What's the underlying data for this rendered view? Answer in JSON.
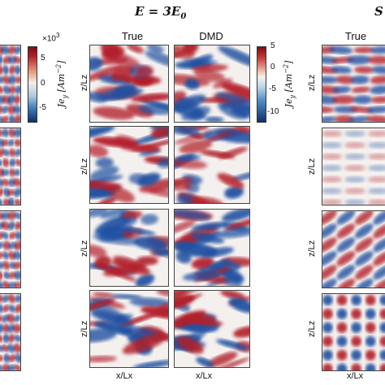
{
  "figure": {
    "title_main": "E = 3E",
    "title_sub": "0",
    "right_title": "S",
    "col_headers": {
      "mid_true": "True",
      "mid_dmd": "DMD",
      "right_true": "True"
    },
    "xlabel": "x/Lx",
    "zlabel": "z/Lz",
    "colorbar_left": {
      "exponent": "×10",
      "exponent_sup": "3",
      "ticks": [
        "5",
        "0",
        "-5"
      ],
      "label": "Je",
      "label_sub": "y",
      "units": "[Am",
      "units_sup": "−2",
      "units_end": "]"
    },
    "colorbar_right": {
      "ticks": [
        "5",
        "0",
        "-5",
        "-10"
      ],
      "label": "Je",
      "label_sub": "y",
      "units": "[Am",
      "units_sup": "−2",
      "units_end": "]"
    },
    "palette": {
      "neg": "#1f4fa0",
      "pos": "#b21f2a",
      "zero": "#f4f0ee"
    }
  }
}
